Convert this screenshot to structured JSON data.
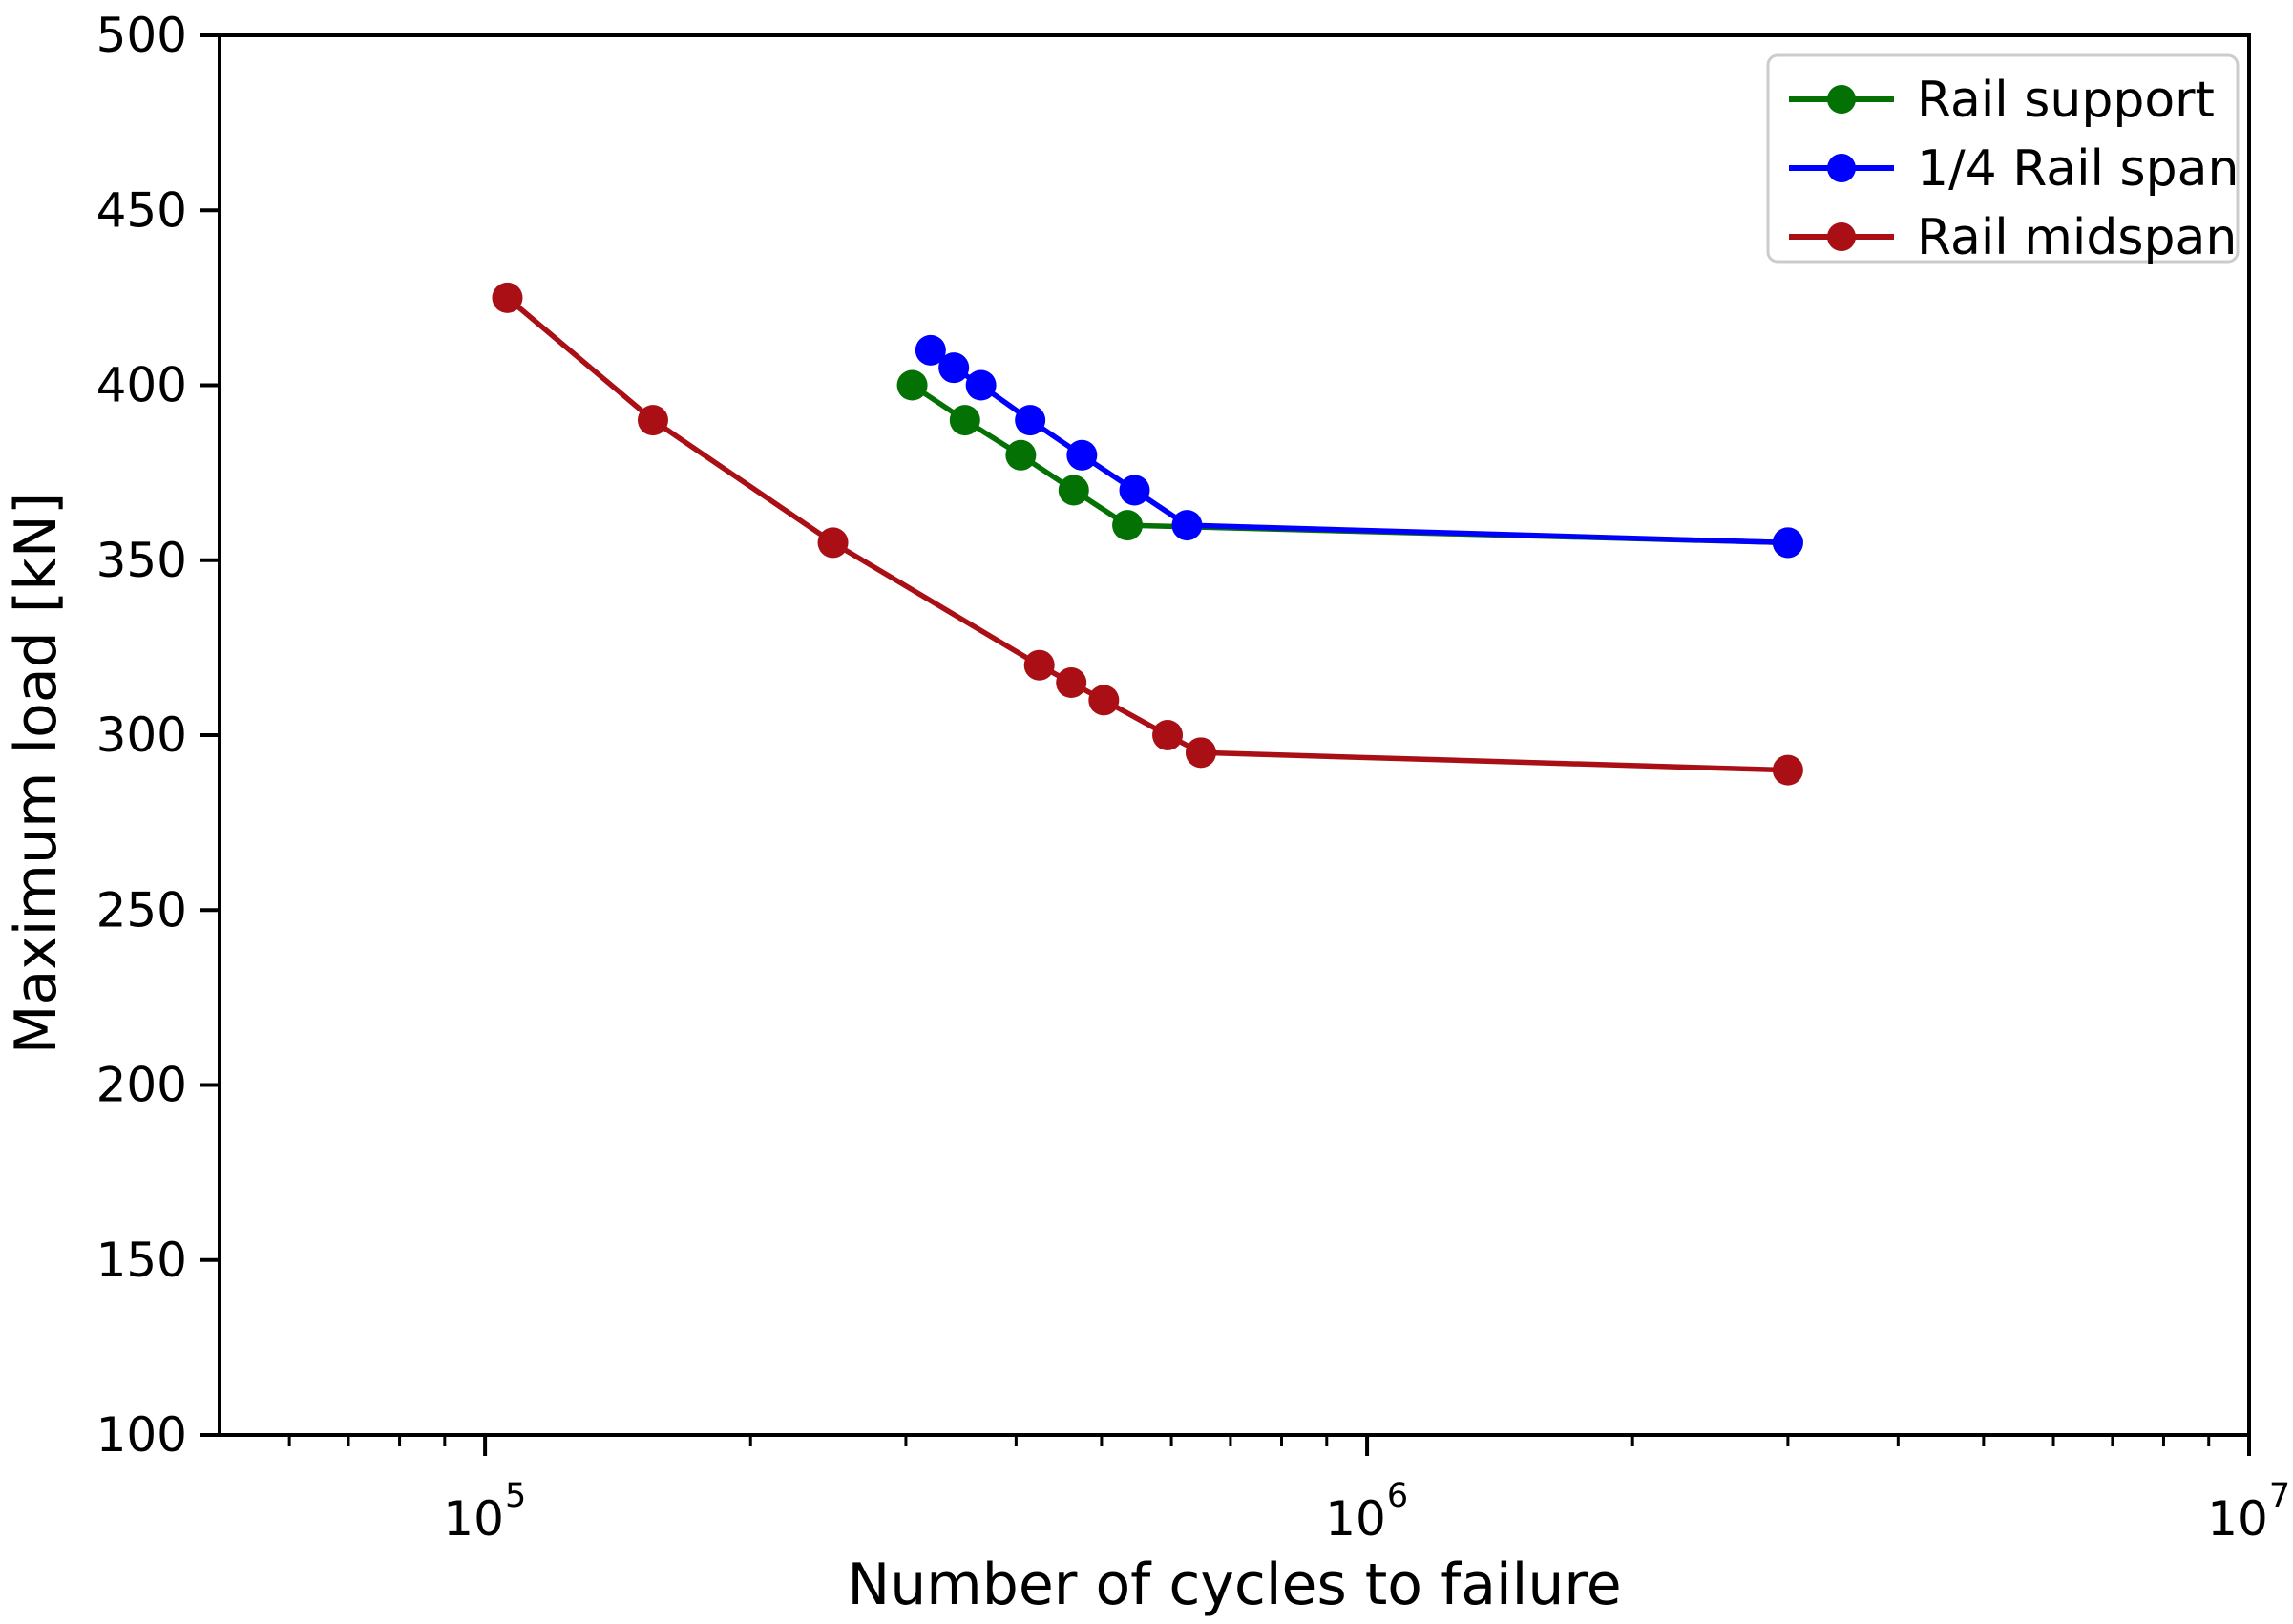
{
  "figure": {
    "background": "#ffffff",
    "spine_color": "#000000",
    "tick_color": "#000000",
    "text_color": "#000000"
  },
  "chart_data": {
    "type": "line",
    "title": "",
    "xlabel": "Number of cycles to failure",
    "ylabel": "Maximum load [kN]",
    "x_scale": "log",
    "y_scale": "linear",
    "xlim_log10": [
      4.699,
      7.0
    ],
    "ylim": [
      100,
      500
    ],
    "grid": false,
    "y_ticks": [
      100,
      150,
      200,
      250,
      300,
      350,
      400,
      450,
      500
    ],
    "x_major_ticks": [
      {
        "value": 100000,
        "label_base": "10",
        "label_exp": "5"
      },
      {
        "value": 1000000,
        "label_base": "10",
        "label_exp": "6"
      },
      {
        "value": 10000000,
        "label_base": "10",
        "label_exp": "7"
      }
    ],
    "legend": {
      "position": "upper right",
      "border_color": "#cccccc",
      "background": "#ffffff",
      "entries": [
        "Rail support",
        "1/4 Rail span",
        "Rail midspan"
      ]
    },
    "series": [
      {
        "name": "Rail support",
        "color": "#047104",
        "marker": "circle",
        "x": [
          305000,
          350000,
          405000,
          465000,
          535000,
          3000000
        ],
        "y": [
          400,
          390,
          380,
          370,
          360,
          355
        ]
      },
      {
        "name": "1/4 Rail span",
        "color": "#0000ff",
        "marker": "circle",
        "x": [
          320000,
          340000,
          365000,
          415000,
          475000,
          545000,
          625000,
          3000000
        ],
        "y": [
          410,
          405,
          400,
          390,
          380,
          370,
          360,
          355
        ]
      },
      {
        "name": "Rail midspan",
        "color": "#a90f14",
        "marker": "circle",
        "x": [
          106000,
          155000,
          248000,
          425000,
          462000,
          503000,
          594000,
          648000,
          3000000
        ],
        "y": [
          425,
          390,
          355,
          320,
          315,
          310,
          300,
          295,
          290
        ]
      }
    ]
  }
}
